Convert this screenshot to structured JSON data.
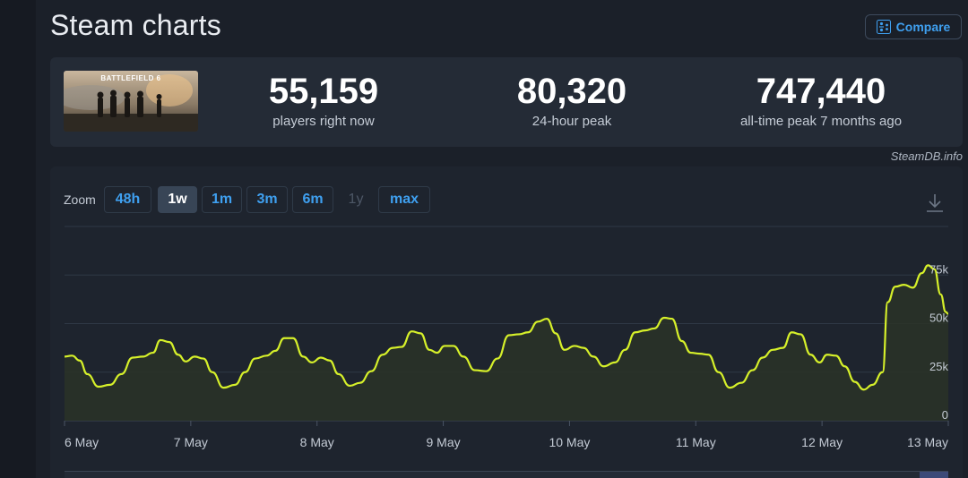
{
  "page": {
    "title": "Steam charts"
  },
  "header": {
    "compare_label": "Compare"
  },
  "game": {
    "thumbnail_title": "BATTLEFIELD 6"
  },
  "stats": [
    {
      "value": "55,159",
      "caption": "players right now"
    },
    {
      "value": "80,320",
      "caption": "24-hour peak"
    },
    {
      "value": "747,440",
      "caption": "all-time peak 7 months ago"
    }
  ],
  "credit": "SteamDB.info",
  "zoom": {
    "label": "Zoom",
    "options": [
      {
        "label": "48h",
        "state": "normal"
      },
      {
        "label": "1w",
        "state": "active"
      },
      {
        "label": "1m",
        "state": "normal"
      },
      {
        "label": "3m",
        "state": "normal"
      },
      {
        "label": "6m",
        "state": "normal"
      },
      {
        "label": "1y",
        "state": "disabled"
      },
      {
        "label": "max",
        "state": "normal"
      }
    ]
  },
  "colors": {
    "line": "#d6f02a",
    "area": "#2a3227",
    "grid": "#2f3845",
    "axis_text": "#c4cbd5",
    "accent": "#3fa0f0"
  },
  "chart_data": {
    "type": "area",
    "title": "",
    "xlabel": "",
    "ylabel": "",
    "y_ticks": [
      0,
      25000,
      50000,
      75000
    ],
    "y_tick_labels": [
      "0",
      "25k",
      "50k",
      "75k"
    ],
    "ylim": [
      0,
      100000
    ],
    "x_tick_labels": [
      "6 May",
      "7 May",
      "8 May",
      "9 May",
      "10 May",
      "11 May",
      "12 May",
      "13 May"
    ],
    "x_range_days": [
      0,
      7.0
    ],
    "grid": true,
    "series": [
      {
        "name": "",
        "points": [
          [
            0.0,
            33000
          ],
          [
            0.06,
            33500
          ],
          [
            0.12,
            31000
          ],
          [
            0.18,
            24000
          ],
          [
            0.27,
            17500
          ],
          [
            0.36,
            18500
          ],
          [
            0.45,
            24000
          ],
          [
            0.54,
            32500
          ],
          [
            0.62,
            33000
          ],
          [
            0.7,
            35000
          ],
          [
            0.76,
            41500
          ],
          [
            0.83,
            40500
          ],
          [
            0.9,
            34000
          ],
          [
            0.96,
            30500
          ],
          [
            1.03,
            33000
          ],
          [
            1.1,
            32000
          ],
          [
            1.17,
            25000
          ],
          [
            1.26,
            17000
          ],
          [
            1.35,
            18500
          ],
          [
            1.43,
            25000
          ],
          [
            1.51,
            32000
          ],
          [
            1.6,
            33500
          ],
          [
            1.67,
            36000
          ],
          [
            1.74,
            42500
          ],
          [
            1.81,
            42500
          ],
          [
            1.89,
            33000
          ],
          [
            1.96,
            30000
          ],
          [
            2.03,
            32500
          ],
          [
            2.1,
            31000
          ],
          [
            2.17,
            24000
          ],
          [
            2.26,
            18000
          ],
          [
            2.34,
            19500
          ],
          [
            2.43,
            25500
          ],
          [
            2.52,
            34000
          ],
          [
            2.6,
            37500
          ],
          [
            2.67,
            38000
          ],
          [
            2.75,
            46000
          ],
          [
            2.82,
            45000
          ],
          [
            2.89,
            36500
          ],
          [
            2.95,
            35000
          ],
          [
            3.01,
            38500
          ],
          [
            3.08,
            38500
          ],
          [
            3.16,
            33000
          ],
          [
            3.25,
            26000
          ],
          [
            3.34,
            25500
          ],
          [
            3.43,
            32000
          ],
          [
            3.52,
            44000
          ],
          [
            3.6,
            44500
          ],
          [
            3.67,
            45500
          ],
          [
            3.75,
            51000
          ],
          [
            3.82,
            52500
          ],
          [
            3.89,
            45000
          ],
          [
            3.96,
            36500
          ],
          [
            4.04,
            38500
          ],
          [
            4.11,
            37500
          ],
          [
            4.19,
            33000
          ],
          [
            4.27,
            28000
          ],
          [
            4.36,
            30000
          ],
          [
            4.44,
            36500
          ],
          [
            4.52,
            45500
          ],
          [
            4.6,
            46500
          ],
          [
            4.67,
            47500
          ],
          [
            4.75,
            53000
          ],
          [
            4.81,
            52500
          ],
          [
            4.89,
            41000
          ],
          [
            4.96,
            35000
          ],
          [
            5.03,
            34500
          ],
          [
            5.1,
            34000
          ],
          [
            5.18,
            25000
          ],
          [
            5.27,
            17000
          ],
          [
            5.36,
            19500
          ],
          [
            5.45,
            26000
          ],
          [
            5.53,
            32500
          ],
          [
            5.61,
            36500
          ],
          [
            5.69,
            37500
          ],
          [
            5.76,
            45500
          ],
          [
            5.83,
            44500
          ],
          [
            5.91,
            34000
          ],
          [
            5.98,
            30000
          ],
          [
            6.04,
            34000
          ],
          [
            6.11,
            33500
          ],
          [
            6.18,
            28000
          ],
          [
            6.26,
            20000
          ],
          [
            6.33,
            16000
          ],
          [
            6.4,
            18500
          ],
          [
            6.48,
            25000
          ],
          [
            6.52,
            61000
          ],
          [
            6.58,
            69000
          ],
          [
            6.65,
            70000
          ],
          [
            6.72,
            68500
          ],
          [
            6.79,
            76000
          ],
          [
            6.84,
            80000
          ],
          [
            6.89,
            78000
          ],
          [
            6.94,
            65000
          ],
          [
            6.98,
            56000
          ],
          [
            7.0,
            55000
          ]
        ]
      }
    ]
  }
}
